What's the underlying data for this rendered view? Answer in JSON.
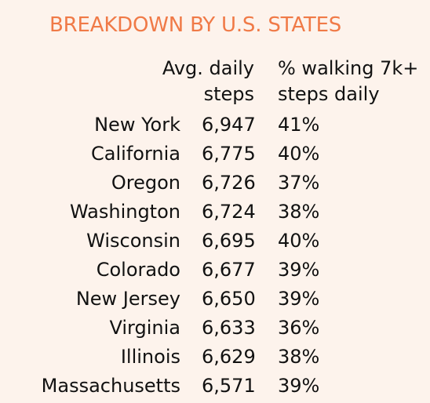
{
  "title": "BREAKDOWN BY U.S. STATES",
  "colors": {
    "background": "#fdf3ec",
    "title": "#f07a47",
    "text": "#111111"
  },
  "chart_data": {
    "type": "table",
    "title": "BREAKDOWN BY U.S. STATES",
    "columns": [
      "",
      "Avg. daily steps",
      "% walking 7k+ steps daily"
    ],
    "header": {
      "steps_line1": "Avg. daily",
      "steps_line2": "steps",
      "pct_line1": "% walking 7k+",
      "pct_line2": "steps daily"
    },
    "rows": [
      {
        "state": "New York",
        "steps": "6,947",
        "pct": "41%"
      },
      {
        "state": "California",
        "steps": "6,775",
        "pct": "40%"
      },
      {
        "state": "Oregon",
        "steps": "6,726",
        "pct": "37%"
      },
      {
        "state": "Washington",
        "steps": "6,724",
        "pct": "38%"
      },
      {
        "state": "Wisconsin",
        "steps": "6,695",
        "pct": "40%"
      },
      {
        "state": "Colorado",
        "steps": "6,677",
        "pct": "39%"
      },
      {
        "state": "New Jersey",
        "steps": "6,650",
        "pct": "39%"
      },
      {
        "state": "Virginia",
        "steps": "6,633",
        "pct": "36%"
      },
      {
        "state": "Illinois",
        "steps": "6,629",
        "pct": "38%"
      },
      {
        "state": "Massachusetts",
        "steps": "6,571",
        "pct": "39%"
      }
    ]
  }
}
